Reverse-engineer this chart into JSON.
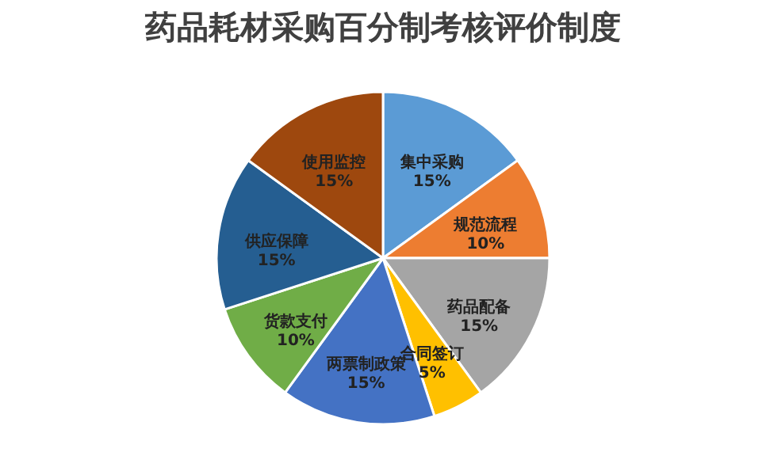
{
  "chart_data": {
    "type": "pie",
    "title": "药品耗材采购百分制考核评价制度",
    "categories": [
      "集中采购",
      "规范流程",
      "药品配备",
      "合同签订",
      "两票制政策",
      "货款支付",
      "供应保障",
      "使用监控"
    ],
    "values": [
      15,
      10,
      15,
      5,
      15,
      10,
      15,
      15
    ],
    "value_labels": [
      "15%",
      "10%",
      "15%",
      "5%",
      "15%",
      "10%",
      "15%",
      "15%"
    ],
    "colors": [
      "#5b9bd5",
      "#ed7d31",
      "#a5a5a5",
      "#ffc000",
      "#4472c4",
      "#70ad47",
      "#255e91",
      "#9e480e"
    ],
    "legend": false
  }
}
